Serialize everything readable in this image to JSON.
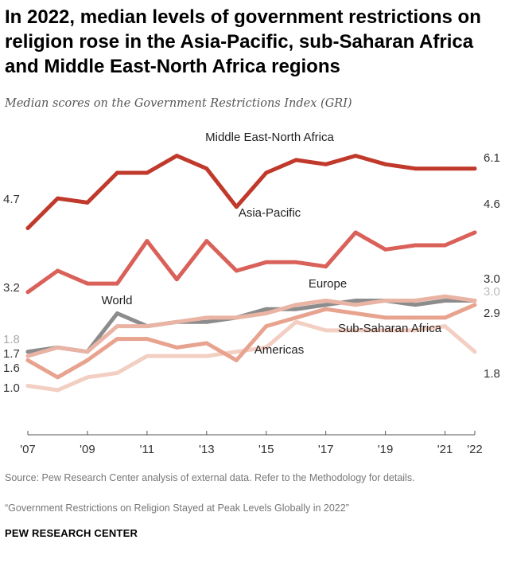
{
  "title": "In 2022, median levels of government restrictions on religion rose in the Asia-Pacific, sub-Saharan Africa and Middle East-North Africa regions",
  "subtitle": "Median scores on the Government Restrictions Index (GRI)",
  "source": "Source: Pew Research Center analysis of external data. Refer to the Methodology for details.",
  "report": "“Government Restrictions on Religion Stayed at Peak Levels Globally in 2022”",
  "brand": "PEW RESEARCH CENTER",
  "colors": {
    "mena": "#c0392b",
    "asia": "#d9615a",
    "world": "#8c8c8c",
    "europe": "#eab4a5",
    "ssa": "#e8a38f",
    "americas": "#f3cfc3"
  },
  "chart_data": {
    "type": "line",
    "x": [
      2007,
      2008,
      2009,
      2010,
      2011,
      2012,
      2013,
      2014,
      2015,
      2016,
      2017,
      2018,
      2019,
      2020,
      2021,
      2022
    ],
    "x_tick_labels": [
      "'07",
      "'09",
      "'11",
      "'13",
      "'15",
      "'17",
      "'19",
      "'21",
      "'22"
    ],
    "x_tick_years": [
      2007,
      2009,
      2011,
      2013,
      2015,
      2017,
      2019,
      2021,
      2022
    ],
    "ylim": [
      0,
      10
    ],
    "grid": false,
    "series": [
      {
        "name": "Middle East-North Africa",
        "key": "mena",
        "values": [
          4.7,
          5.4,
          5.3,
          6.0,
          6.0,
          6.4,
          6.1,
          5.2,
          6.0,
          6.3,
          6.2,
          6.4,
          6.2,
          6.1,
          6.1,
          6.1
        ],
        "start_label": "4.7",
        "end_label": "6.1"
      },
      {
        "name": "Asia-Pacific",
        "key": "asia",
        "values": [
          3.2,
          3.7,
          3.4,
          3.4,
          4.4,
          3.5,
          4.4,
          3.7,
          3.9,
          3.9,
          3.8,
          4.6,
          4.2,
          4.3,
          4.3,
          4.6
        ],
        "start_label": "3.2",
        "end_label": "4.6"
      },
      {
        "name": "World",
        "key": "world",
        "values": [
          1.8,
          1.9,
          1.8,
          2.7,
          2.4,
          2.5,
          2.5,
          2.6,
          2.8,
          2.8,
          2.9,
          3.0,
          3.0,
          2.9,
          3.0,
          3.0
        ],
        "start_label": "1.8",
        "end_label": "3.0"
      },
      {
        "name": "Europe",
        "key": "europe",
        "values": [
          1.7,
          1.9,
          1.8,
          2.4,
          2.4,
          2.5,
          2.6,
          2.6,
          2.7,
          2.9,
          3.0,
          2.9,
          3.0,
          3.0,
          3.1,
          3.0
        ],
        "start_label": "1.7",
        "end_label": "3.0"
      },
      {
        "name": "Sub-Saharan Africa",
        "key": "ssa",
        "values": [
          1.6,
          1.2,
          1.6,
          2.1,
          2.1,
          1.9,
          2.0,
          1.6,
          2.4,
          2.6,
          2.8,
          2.7,
          2.6,
          2.6,
          2.6,
          2.9
        ],
        "start_label": "1.6",
        "end_label": "2.9"
      },
      {
        "name": "Americas",
        "key": "americas",
        "values": [
          1.0,
          0.9,
          1.2,
          1.3,
          1.7,
          1.7,
          1.7,
          1.8,
          1.9,
          2.5,
          2.3,
          2.3,
          2.3,
          2.3,
          2.4,
          1.8
        ],
        "start_label": "1.0",
        "end_label": "1.8"
      }
    ]
  }
}
